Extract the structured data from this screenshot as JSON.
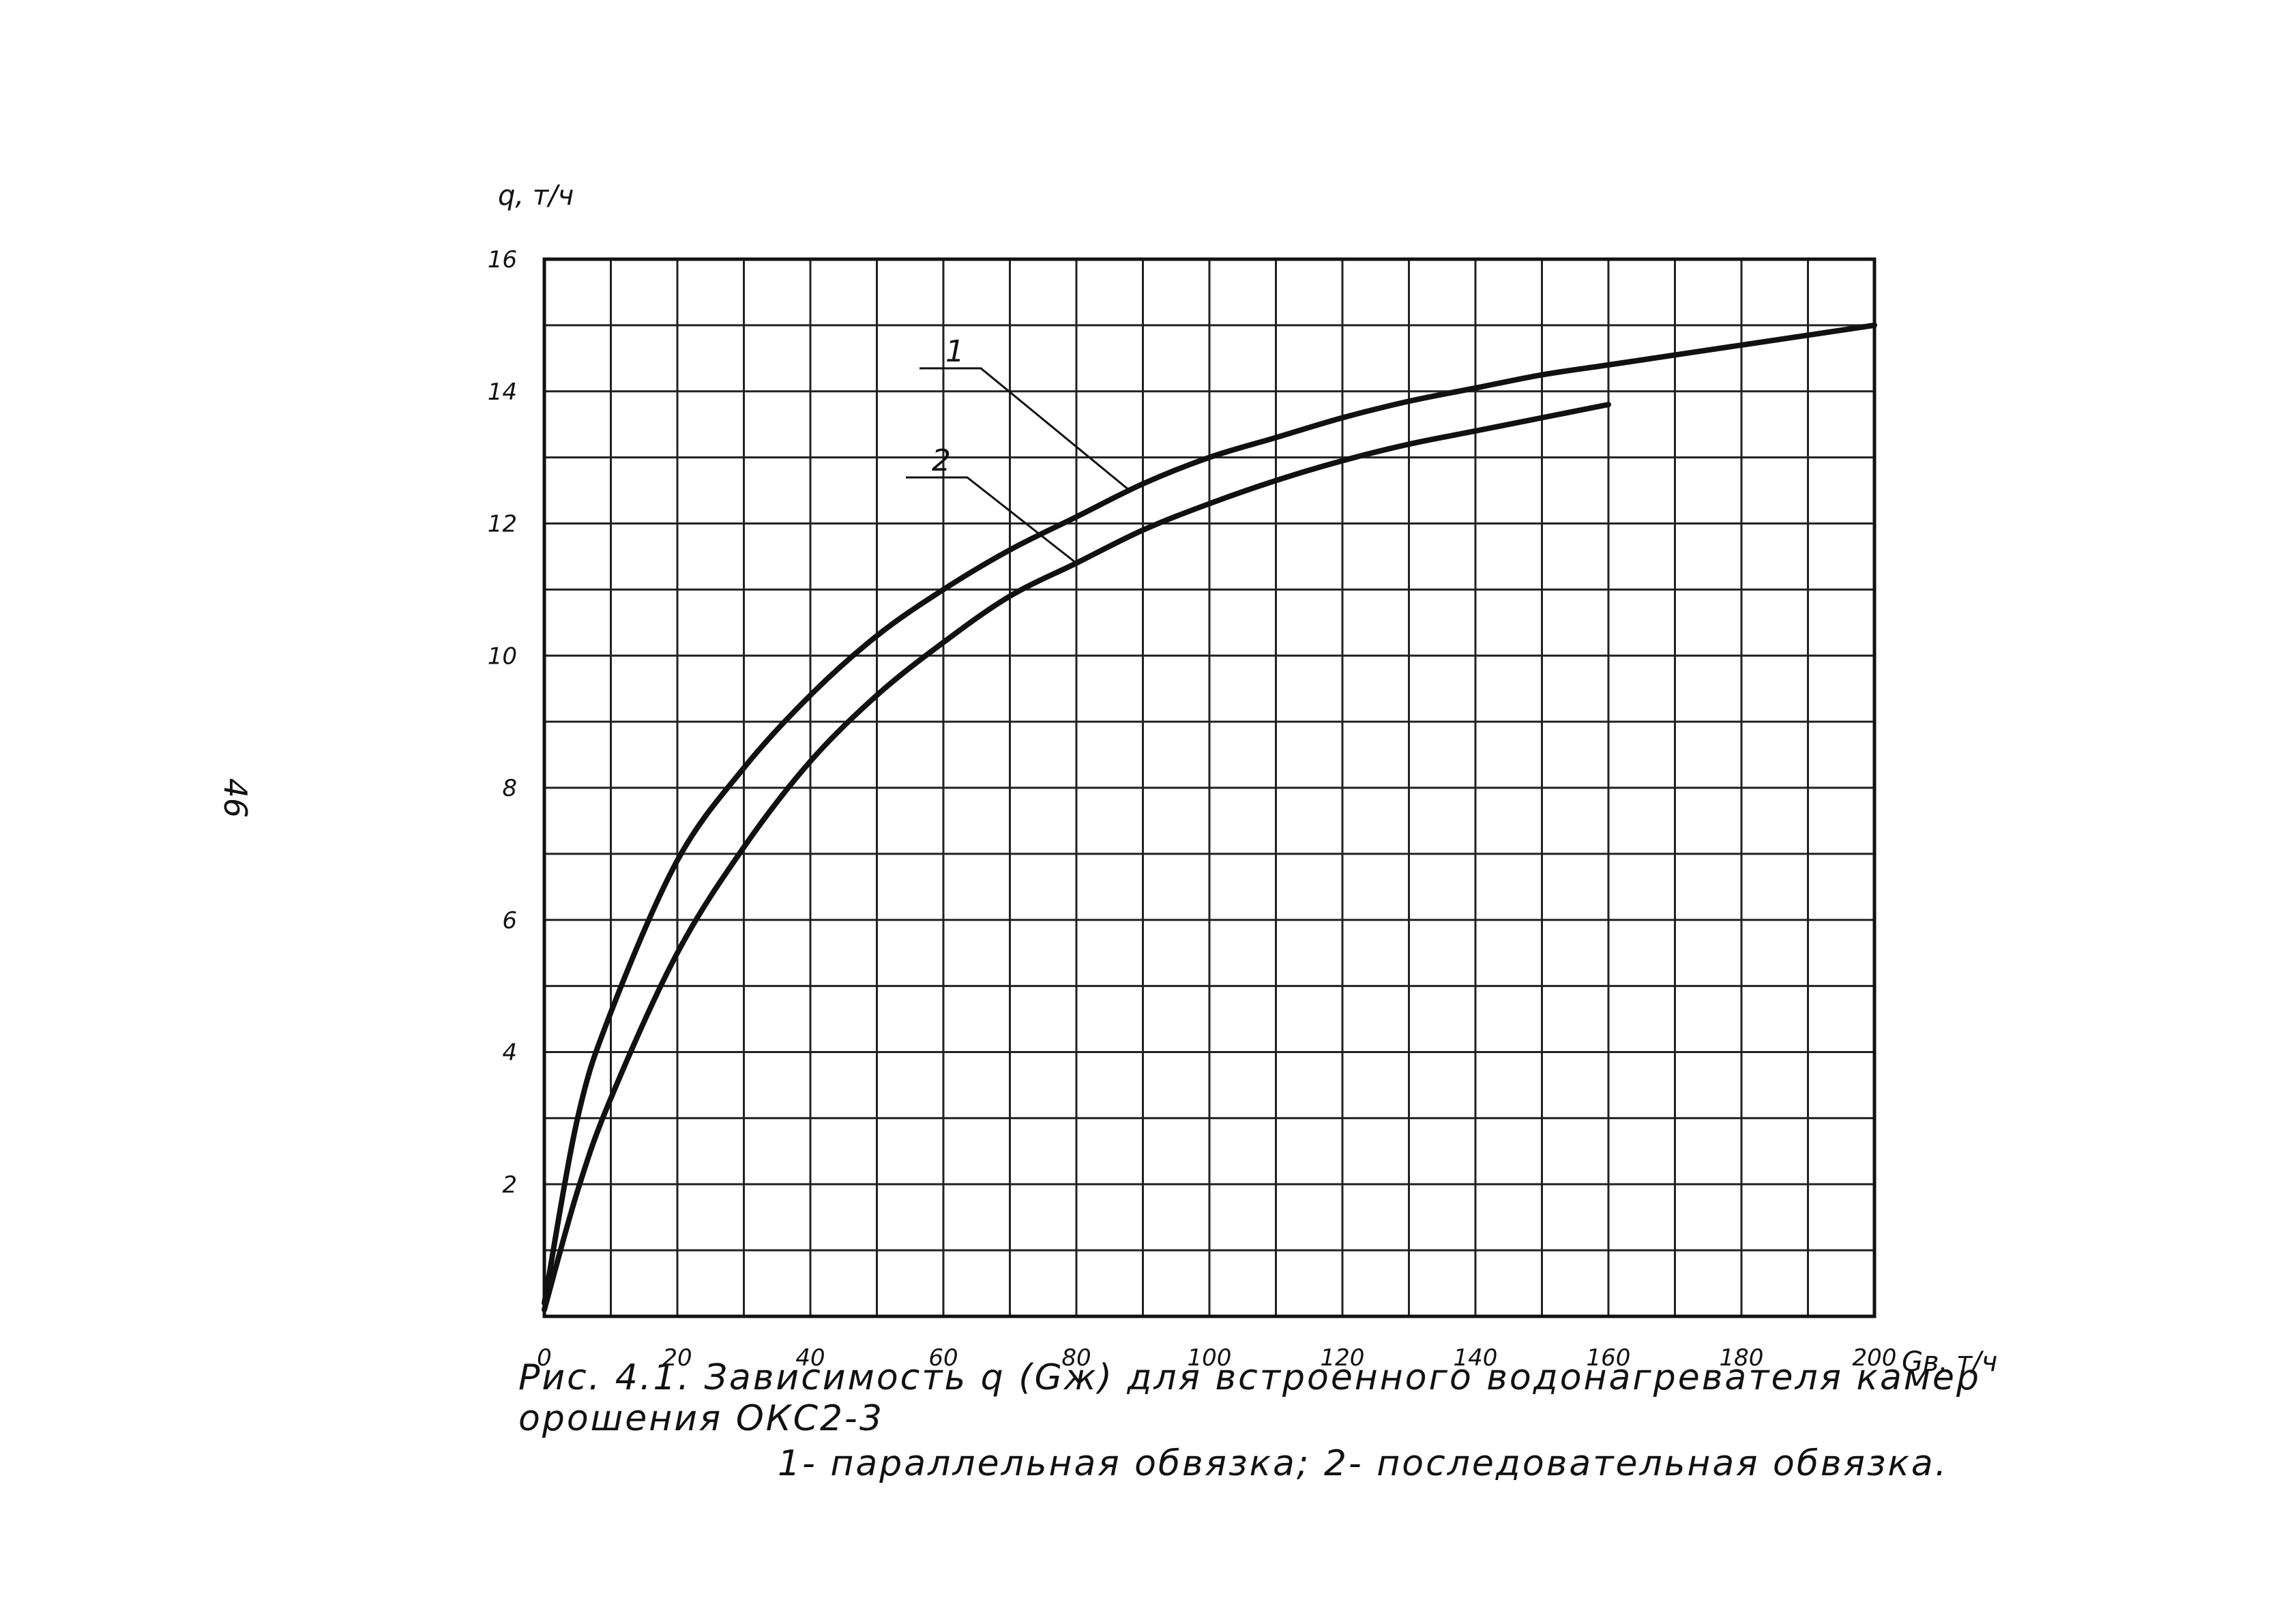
{
  "page_number": "46",
  "caption": {
    "line1": "Рис. 4.1. Зависимость q (Gж) для встроенного водонагревателя камер орошения ОКС2-3",
    "line2": "1- параллельная обвязка; 2- последовательная обвязка."
  },
  "colors": {
    "ink": "#111111",
    "grid": "#222222",
    "paper": "#ffffff"
  },
  "chart_data": {
    "type": "line",
    "ylabel": "q, т/ч",
    "xlabel": "Gв, т/ч",
    "xlim": [
      0,
      200
    ],
    "ylim": [
      0,
      16
    ],
    "x_ticks": [
      "0",
      "20",
      "40",
      "60",
      "80",
      "100",
      "120",
      "140",
      "160",
      "180",
      "200"
    ],
    "y_ticks": [
      "2",
      "4",
      "6",
      "8",
      "10",
      "12",
      "14",
      "16"
    ],
    "x_grid_step": 10,
    "y_grid_step": 1,
    "grid": true,
    "series": [
      {
        "name": "1",
        "x": [
          0,
          5,
          10,
          20,
          30,
          40,
          50,
          60,
          70,
          80,
          90,
          100,
          110,
          120,
          130,
          140,
          150,
          160,
          170,
          180,
          190,
          200
        ],
        "y": [
          0.2,
          3.0,
          4.6,
          6.9,
          8.3,
          9.4,
          10.3,
          11.0,
          11.6,
          12.1,
          12.6,
          13.0,
          13.3,
          13.6,
          13.85,
          14.05,
          14.25,
          14.4,
          14.55,
          14.7,
          14.85,
          15.0
        ]
      },
      {
        "name": "2",
        "x": [
          0,
          5,
          10,
          20,
          30,
          40,
          50,
          60,
          70,
          80,
          90,
          100,
          110,
          120,
          130,
          140,
          150,
          160
        ],
        "y": [
          0.1,
          1.9,
          3.3,
          5.5,
          7.1,
          8.4,
          9.4,
          10.2,
          10.9,
          11.4,
          11.9,
          12.3,
          12.65,
          12.95,
          13.2,
          13.4,
          13.6,
          13.8
        ]
      }
    ]
  }
}
